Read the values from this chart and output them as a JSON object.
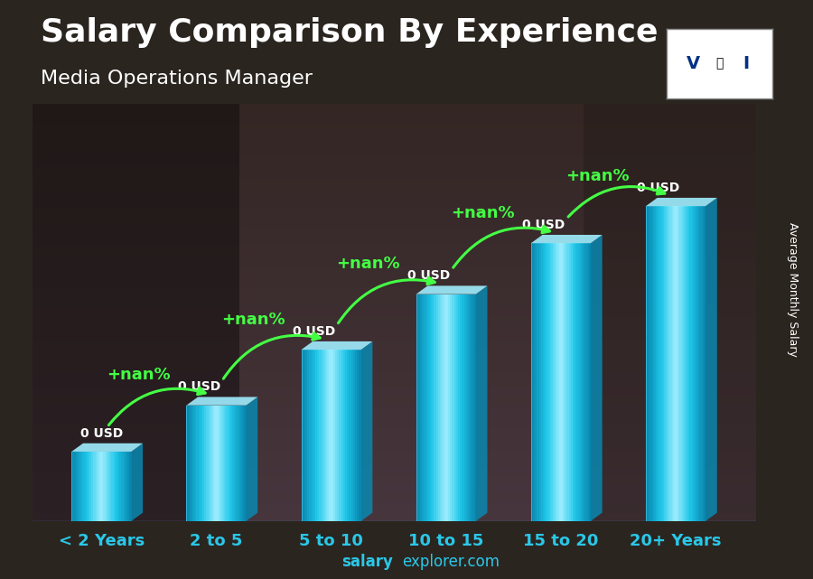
{
  "title": "Salary Comparison By Experience",
  "subtitle": "Media Operations Manager",
  "categories": [
    "< 2 Years",
    "2 to 5",
    "5 to 10",
    "10 to 15",
    "15 to 20",
    "20+ Years"
  ],
  "value_labels": [
    "0 USD",
    "0 USD",
    "0 USD",
    "0 USD",
    "0 USD",
    "0 USD"
  ],
  "pct_labels": [
    "+nan%",
    "+nan%",
    "+nan%",
    "+nan%",
    "+nan%"
  ],
  "ylabel": "Average Monthly Salary",
  "footer_bold": "salary",
  "footer_regular": "explorer.com",
  "bar_heights": [
    1.5,
    2.5,
    3.7,
    4.9,
    6.0,
    6.8
  ],
  "ylim": [
    0,
    9.0
  ],
  "xlim": [
    -0.6,
    5.7
  ],
  "bar_face_color": "#1EC6E8",
  "bar_light_color": "#A0EEFF",
  "bar_dark_color": "#0A88B0",
  "bar_width": 0.52,
  "green_color": "#44FF44",
  "white_color": "#FFFFFF",
  "cyan_color": "#29C8E8",
  "bg_top_color": "#3a3028",
  "bg_bottom_color": "#1a1a22",
  "title_fontsize": 26,
  "subtitle_fontsize": 16,
  "tick_fontsize": 13,
  "val_label_fontsize": 10,
  "pct_fontsize": 13,
  "footer_fontsize": 12,
  "ylabel_fontsize": 9
}
